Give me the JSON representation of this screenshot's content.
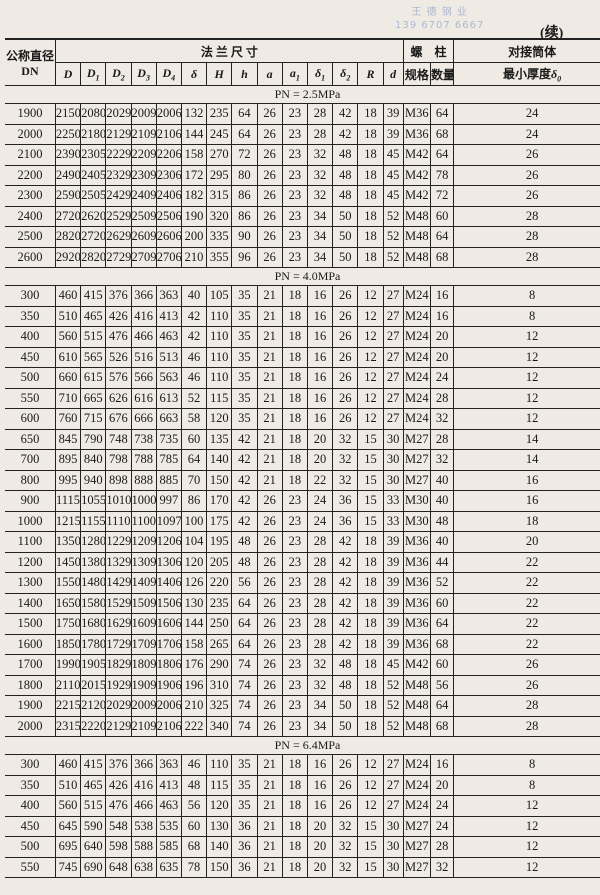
{
  "watermark": {
    "line1": "王 德 钢 业",
    "line2": "139 6707 6667"
  },
  "continued_label": "(续)",
  "header": {
    "dn_label": "公称直径",
    "dn_sub": "DN",
    "flange_label": "法 兰 尺 寸",
    "bolt_label": "螺　柱",
    "shell_label": "对接筒体",
    "bolt_spec": "规格",
    "bolt_qty": "数量",
    "shell_thickness": "最小厚度",
    "shell_symbol": "δ",
    "shell_symbol_sub": "0",
    "columns": [
      {
        "sym": "D",
        "sub": ""
      },
      {
        "sym": "D",
        "sub": "1"
      },
      {
        "sym": "D",
        "sub": "2"
      },
      {
        "sym": "D",
        "sub": "3"
      },
      {
        "sym": "D",
        "sub": "4"
      },
      {
        "sym": "δ",
        "sub": ""
      },
      {
        "sym": "H",
        "sub": ""
      },
      {
        "sym": "h",
        "sub": ""
      },
      {
        "sym": "a",
        "sub": ""
      },
      {
        "sym": "a",
        "sub": "1"
      },
      {
        "sym": "δ",
        "sub": "1"
      },
      {
        "sym": "δ",
        "sub": "2"
      },
      {
        "sym": "R",
        "sub": ""
      },
      {
        "sym": "d",
        "sub": ""
      }
    ]
  },
  "sections": [
    {
      "title": "PN = 2.5MPa",
      "rows": [
        [
          "1900",
          "2150",
          "2080",
          "2029",
          "2009",
          "2006",
          "132",
          "235",
          "64",
          "26",
          "23",
          "28",
          "42",
          "18",
          "39",
          "M36",
          "64",
          "24"
        ],
        [
          "2000",
          "2250",
          "2180",
          "2129",
          "2109",
          "2106",
          "144",
          "245",
          "64",
          "26",
          "23",
          "28",
          "42",
          "18",
          "39",
          "M36",
          "68",
          "24"
        ],
        [
          "2100",
          "2390",
          "2305",
          "2229",
          "2209",
          "2206",
          "158",
          "270",
          "72",
          "26",
          "23",
          "32",
          "48",
          "18",
          "45",
          "M42",
          "64",
          "26"
        ],
        [
          "2200",
          "2490",
          "2405",
          "2329",
          "2309",
          "2306",
          "172",
          "295",
          "80",
          "26",
          "23",
          "32",
          "48",
          "18",
          "45",
          "M42",
          "78",
          "26"
        ],
        [
          "2300",
          "2590",
          "2505",
          "2429",
          "2409",
          "2406",
          "182",
          "315",
          "86",
          "26",
          "23",
          "32",
          "48",
          "18",
          "45",
          "M42",
          "72",
          "26"
        ],
        [
          "2400",
          "2720",
          "2620",
          "2529",
          "2509",
          "2506",
          "190",
          "320",
          "86",
          "26",
          "23",
          "34",
          "50",
          "18",
          "52",
          "M48",
          "60",
          "28"
        ],
        [
          "2500",
          "2820",
          "2720",
          "2629",
          "2609",
          "2606",
          "200",
          "335",
          "90",
          "26",
          "23",
          "34",
          "50",
          "18",
          "52",
          "M48",
          "64",
          "28"
        ],
        [
          "2600",
          "2920",
          "2820",
          "2729",
          "2709",
          "2706",
          "210",
          "355",
          "96",
          "26",
          "23",
          "34",
          "50",
          "18",
          "52",
          "M48",
          "68",
          "28"
        ]
      ]
    },
    {
      "title": "PN = 4.0MPa",
      "rows": [
        [
          "300",
          "460",
          "415",
          "376",
          "366",
          "363",
          "40",
          "105",
          "35",
          "21",
          "18",
          "16",
          "26",
          "12",
          "27",
          "M24",
          "16",
          "8"
        ],
        [
          "350",
          "510",
          "465",
          "426",
          "416",
          "413",
          "42",
          "110",
          "35",
          "21",
          "18",
          "16",
          "26",
          "12",
          "27",
          "M24",
          "16",
          "8"
        ],
        [
          "400",
          "560",
          "515",
          "476",
          "466",
          "463",
          "42",
          "110",
          "35",
          "21",
          "18",
          "16",
          "26",
          "12",
          "27",
          "M24",
          "20",
          "12"
        ],
        [
          "450",
          "610",
          "565",
          "526",
          "516",
          "513",
          "46",
          "110",
          "35",
          "21",
          "18",
          "16",
          "26",
          "12",
          "27",
          "M24",
          "20",
          "12"
        ],
        [
          "500",
          "660",
          "615",
          "576",
          "566",
          "563",
          "46",
          "110",
          "35",
          "21",
          "18",
          "16",
          "26",
          "12",
          "27",
          "M24",
          "24",
          "12"
        ],
        [
          "550",
          "710",
          "665",
          "626",
          "616",
          "613",
          "52",
          "115",
          "35",
          "21",
          "18",
          "16",
          "26",
          "12",
          "27",
          "M24",
          "28",
          "12"
        ],
        [
          "600",
          "760",
          "715",
          "676",
          "666",
          "663",
          "58",
          "120",
          "35",
          "21",
          "18",
          "16",
          "26",
          "12",
          "27",
          "M24",
          "32",
          "12"
        ],
        [
          "650",
          "845",
          "790",
          "748",
          "738",
          "735",
          "60",
          "135",
          "42",
          "21",
          "18",
          "20",
          "32",
          "15",
          "30",
          "M27",
          "28",
          "14"
        ],
        [
          "700",
          "895",
          "840",
          "798",
          "788",
          "785",
          "64",
          "140",
          "42",
          "21",
          "18",
          "20",
          "32",
          "15",
          "30",
          "M27",
          "32",
          "14"
        ],
        [
          "800",
          "995",
          "940",
          "898",
          "888",
          "885",
          "70",
          "150",
          "42",
          "21",
          "18",
          "22",
          "32",
          "15",
          "30",
          "M27",
          "40",
          "16"
        ],
        [
          "900",
          "1115",
          "1055",
          "1010",
          "1000",
          "997",
          "86",
          "170",
          "42",
          "26",
          "23",
          "24",
          "36",
          "15",
          "33",
          "M30",
          "40",
          "16"
        ],
        [
          "1000",
          "1215",
          "1155",
          "1110",
          "1100",
          "1097",
          "100",
          "175",
          "42",
          "26",
          "23",
          "24",
          "36",
          "15",
          "33",
          "M30",
          "48",
          "18"
        ],
        [
          "1100",
          "1350",
          "1280",
          "1229",
          "1209",
          "1206",
          "104",
          "195",
          "48",
          "26",
          "23",
          "28",
          "42",
          "18",
          "39",
          "M36",
          "40",
          "20"
        ],
        [
          "1200",
          "1450",
          "1380",
          "1329",
          "1309",
          "1306",
          "120",
          "205",
          "48",
          "26",
          "23",
          "28",
          "42",
          "18",
          "39",
          "M36",
          "44",
          "22"
        ],
        [
          "1300",
          "1550",
          "1480",
          "1429",
          "1409",
          "1406",
          "126",
          "220",
          "56",
          "26",
          "23",
          "28",
          "42",
          "18",
          "39",
          "M36",
          "52",
          "22"
        ],
        [
          "1400",
          "1650",
          "1580",
          "1529",
          "1509",
          "1506",
          "130",
          "235",
          "64",
          "26",
          "23",
          "28",
          "42",
          "18",
          "39",
          "M36",
          "60",
          "22"
        ],
        [
          "1500",
          "1750",
          "1680",
          "1629",
          "1609",
          "1606",
          "144",
          "250",
          "64",
          "26",
          "23",
          "28",
          "42",
          "18",
          "39",
          "M36",
          "64",
          "22"
        ],
        [
          "1600",
          "1850",
          "1780",
          "1729",
          "1709",
          "1706",
          "158",
          "265",
          "64",
          "26",
          "23",
          "28",
          "42",
          "18",
          "39",
          "M36",
          "68",
          "22"
        ],
        [
          "1700",
          "1990",
          "1905",
          "1829",
          "1809",
          "1806",
          "176",
          "290",
          "74",
          "26",
          "23",
          "32",
          "48",
          "18",
          "45",
          "M42",
          "60",
          "26"
        ],
        [
          "1800",
          "2110",
          "2015",
          "1929",
          "1909",
          "1906",
          "196",
          "310",
          "74",
          "26",
          "23",
          "32",
          "48",
          "18",
          "52",
          "M48",
          "56",
          "26"
        ],
        [
          "1900",
          "2215",
          "2120",
          "2029",
          "2009",
          "2006",
          "210",
          "325",
          "74",
          "26",
          "23",
          "34",
          "50",
          "18",
          "52",
          "M48",
          "64",
          "28"
        ],
        [
          "2000",
          "2315",
          "2220",
          "2129",
          "2109",
          "2106",
          "222",
          "340",
          "74",
          "26",
          "23",
          "34",
          "50",
          "18",
          "52",
          "M48",
          "68",
          "28"
        ]
      ]
    },
    {
      "title": "PN = 6.4MPa",
      "rows": [
        [
          "300",
          "460",
          "415",
          "376",
          "366",
          "363",
          "46",
          "110",
          "35",
          "21",
          "18",
          "16",
          "26",
          "12",
          "27",
          "M24",
          "16",
          "8"
        ],
        [
          "350",
          "510",
          "465",
          "426",
          "416",
          "413",
          "48",
          "115",
          "35",
          "21",
          "18",
          "16",
          "26",
          "12",
          "27",
          "M24",
          "20",
          "8"
        ],
        [
          "400",
          "560",
          "515",
          "476",
          "466",
          "463",
          "56",
          "120",
          "35",
          "21",
          "18",
          "16",
          "26",
          "12",
          "27",
          "M24",
          "24",
          "12"
        ],
        [
          "450",
          "645",
          "590",
          "548",
          "538",
          "535",
          "60",
          "130",
          "36",
          "21",
          "18",
          "20",
          "32",
          "15",
          "30",
          "M27",
          "24",
          "12"
        ],
        [
          "500",
          "695",
          "640",
          "598",
          "588",
          "585",
          "68",
          "140",
          "36",
          "21",
          "18",
          "20",
          "32",
          "15",
          "30",
          "M27",
          "28",
          "12"
        ],
        [
          "550",
          "745",
          "690",
          "648",
          "638",
          "635",
          "78",
          "150",
          "36",
          "21",
          "18",
          "20",
          "32",
          "15",
          "30",
          "M27",
          "32",
          "12"
        ]
      ]
    }
  ]
}
